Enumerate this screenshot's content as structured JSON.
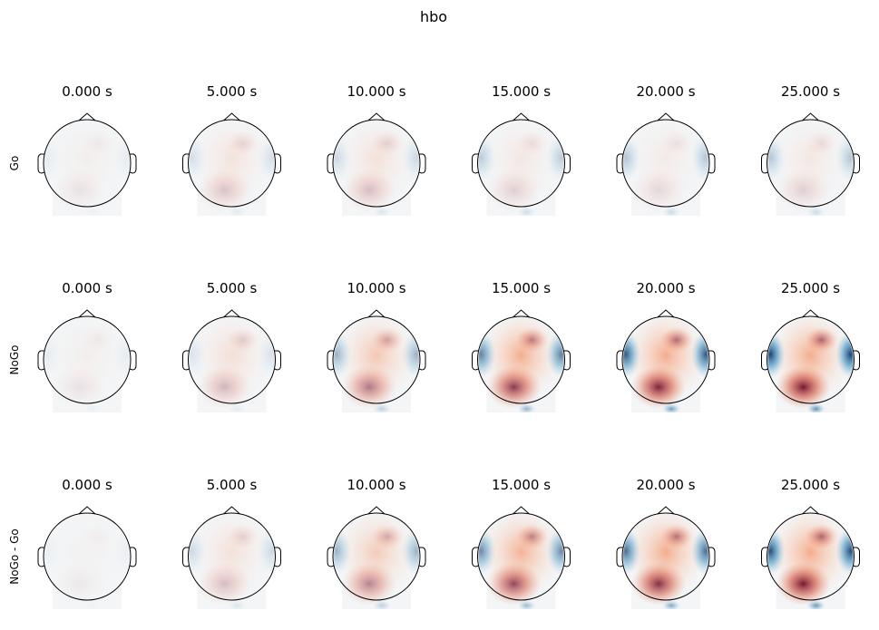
{
  "chart_data": {
    "type": "heatmap",
    "title": "hbo",
    "colormap": "RdBu_r",
    "colors": {
      "positive": "#67001f",
      "negative": "#053061",
      "zero": "#f7f7f7",
      "outline": "#000000"
    },
    "times": [
      "0.000 s",
      "5.000 s",
      "10.000 s",
      "15.000 s",
      "20.000 s",
      "25.000 s"
    ],
    "rows": [
      {
        "label": "Go",
        "red_level": [
          0.08,
          0.2,
          0.22,
          0.15,
          0.12,
          0.15
        ],
        "blue_level": [
          0.05,
          0.12,
          0.15,
          0.22,
          0.25,
          0.25
        ]
      },
      {
        "label": "NoGo",
        "red_level": [
          0.08,
          0.25,
          0.5,
          0.75,
          0.85,
          0.9
        ],
        "blue_level": [
          0.05,
          0.1,
          0.35,
          0.6,
          0.8,
          0.9
        ]
      },
      {
        "label": "NoGo - Go",
        "red_level": [
          0.05,
          0.22,
          0.45,
          0.7,
          0.8,
          0.9
        ],
        "blue_level": [
          0.03,
          0.15,
          0.35,
          0.55,
          0.7,
          0.85
        ]
      }
    ]
  }
}
